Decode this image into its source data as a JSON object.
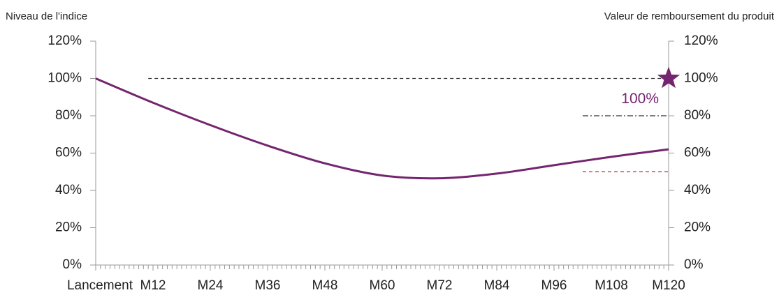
{
  "chart_data": {
    "type": "line",
    "y_axis_label": "Niveau de l'indice",
    "y2_axis_label": "Valeur de remboursement du produit",
    "x": [
      0,
      12,
      24,
      36,
      48,
      60,
      72,
      84,
      96,
      108,
      120
    ],
    "series": [
      {
        "name": "Niveau de l'indice",
        "color": "#75256f",
        "values": [
          100,
          87,
          75,
          64,
          54.5,
          48,
          46.5,
          49,
          53.5,
          58,
          62
        ]
      }
    ],
    "xlim": [
      0,
      120
    ],
    "xticks": [
      {
        "value": 0,
        "label": "Lancement"
      },
      {
        "value": 12,
        "label": "M12"
      },
      {
        "value": 24,
        "label": "M24"
      },
      {
        "value": 36,
        "label": "M36"
      },
      {
        "value": 48,
        "label": "M48"
      },
      {
        "value": 60,
        "label": "M60"
      },
      {
        "value": 72,
        "label": "M72"
      },
      {
        "value": 84,
        "label": "M84"
      },
      {
        "value": 96,
        "label": "M96"
      },
      {
        "value": 108,
        "label": "M108"
      },
      {
        "value": 120,
        "label": "M120"
      }
    ],
    "ylim": [
      0,
      120
    ],
    "yticks": [
      {
        "value": 0,
        "label": "0%"
      },
      {
        "value": 20,
        "label": "20%"
      },
      {
        "value": 40,
        "label": "40%"
      },
      {
        "value": 60,
        "label": "60%"
      },
      {
        "value": 80,
        "label": "80%"
      },
      {
        "value": 100,
        "label": "100%"
      },
      {
        "value": 120,
        "label": "120%"
      }
    ],
    "y2lim": [
      0,
      120
    ],
    "y2ticks": [
      {
        "value": 0,
        "label": "0%"
      },
      {
        "value": 20,
        "label": "20%"
      },
      {
        "value": 40,
        "label": "40%"
      },
      {
        "value": 60,
        "label": "60%"
      },
      {
        "value": 80,
        "label": "80%"
      },
      {
        "value": 100,
        "label": "100%"
      },
      {
        "value": 120,
        "label": "120%"
      }
    ],
    "reference_lines": [
      {
        "y": 100,
        "x_start": 11,
        "style": "dashed",
        "color": "#333333"
      },
      {
        "y": 80,
        "x_start": 102,
        "style": "dashdot",
        "color": "#333333"
      },
      {
        "y": 50,
        "x_start": 102,
        "style": "dashed",
        "color": "#c0262d"
      }
    ],
    "marker": {
      "x": 120,
      "y": 100,
      "value_label": "100%",
      "color": "#75256f"
    }
  }
}
